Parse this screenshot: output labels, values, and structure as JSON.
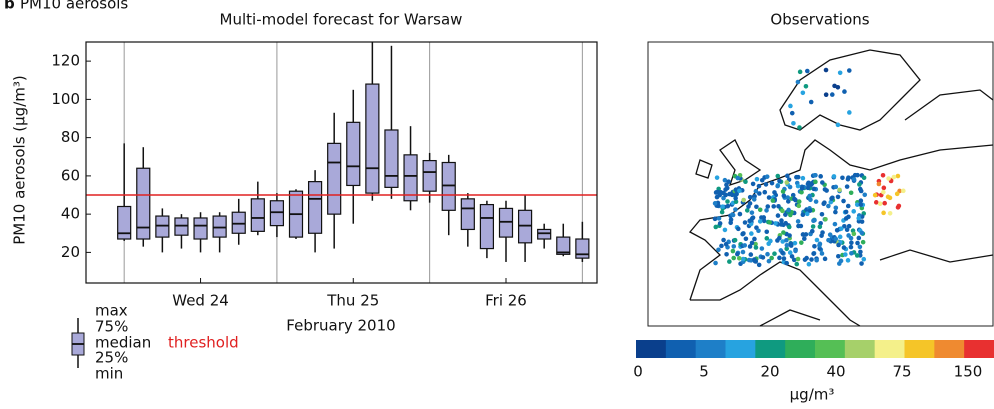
{
  "chart_data": {
    "type": "box",
    "panel_label": "b",
    "subtitle": "PM10 aerosols",
    "title": "Multi-model forecast for Warsaw",
    "x_label": "February 2010",
    "y_label": "PM10 aerosols (µg/m³)",
    "xlim": [
      -6,
      74.3
    ],
    "xticks": [
      {
        "value": 12,
        "label": "Wed 24"
      },
      {
        "value": 36,
        "label": "Thu 25"
      },
      {
        "value": 60,
        "label": "Fri 26"
      }
    ],
    "x_grid": [
      0,
      24,
      48,
      72
    ],
    "ylim": [
      4,
      130
    ],
    "yticks": [
      20,
      40,
      60,
      80,
      100,
      120
    ],
    "color": "#a9a9d9",
    "boxes": {
      "x": [
        0,
        3,
        6,
        9,
        12,
        15,
        18,
        21,
        24,
        27,
        30,
        33,
        36,
        39,
        42,
        45,
        48,
        51,
        54,
        57,
        60,
        63,
        66,
        69,
        72
      ],
      "min": [
        26,
        23,
        20,
        22,
        20,
        20,
        24,
        29,
        28,
        27,
        20,
        22,
        35,
        47,
        48,
        42,
        46,
        29,
        23,
        17,
        15,
        15,
        22,
        18,
        15
      ],
      "q1": [
        27,
        27,
        28,
        29,
        27,
        28,
        30,
        31,
        34,
        28,
        30,
        40,
        55,
        51,
        54,
        47,
        52,
        42,
        32,
        22,
        28,
        25,
        27,
        19,
        17
      ],
      "median": [
        30,
        33,
        34,
        34,
        34,
        33,
        35,
        38,
        41,
        40,
        48,
        67,
        65,
        64,
        60,
        60,
        62,
        55,
        43,
        38,
        36,
        34,
        30,
        20,
        19
      ],
      "q3": [
        44,
        64,
        39,
        38,
        38,
        39,
        41,
        48,
        47,
        52,
        57,
        77,
        88,
        108,
        84,
        71,
        68,
        67,
        48,
        45,
        43,
        42,
        32,
        28,
        27
      ],
      "max": [
        77,
        75,
        43,
        40,
        41,
        41,
        48,
        57,
        51,
        53,
        63,
        93,
        105,
        130,
        128,
        86,
        72,
        71,
        51,
        47,
        47,
        50,
        35,
        35,
        36
      ]
    },
    "threshold": {
      "value": 50,
      "label": "threshold",
      "color": "#e02020"
    },
    "legend": {
      "max": "max",
      "q3": "75%",
      "median": "median",
      "q1": "25%",
      "min": "min"
    },
    "map": {
      "title": "Observations",
      "colorbar": {
        "colors": [
          "#0a3f8c",
          "#1060b0",
          "#1e7fc8",
          "#27a3e0",
          "#0f9a80",
          "#2fae5a",
          "#55bf55",
          "#a6d06a",
          "#f4f08a",
          "#f5c528",
          "#ef8a30",
          "#e83030"
        ],
        "ticks": [
          0,
          5,
          20,
          40,
          75,
          150
        ],
        "unit": "µg/m³"
      }
    }
  }
}
